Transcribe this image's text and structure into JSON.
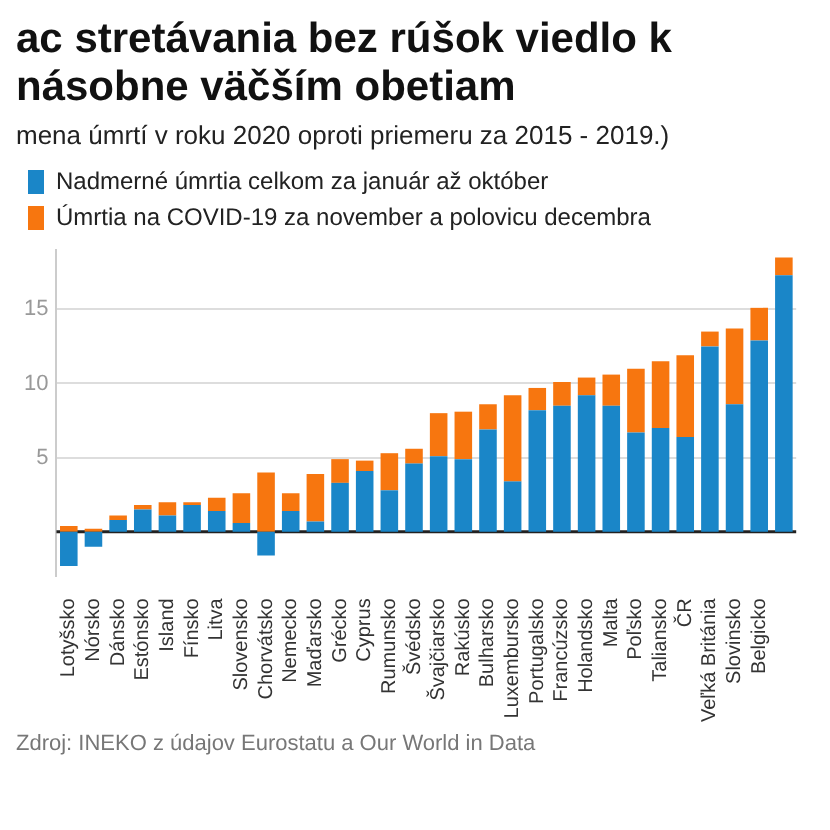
{
  "chart_data": {
    "type": "bar",
    "title": "ac stretávania bez rúšok viedlo k násobne väčším obetiam",
    "subtitle": "mena úmrtí v roku 2020 oproti priemeru za 2015 - 2019.)",
    "categories": [
      "Lotyšsko",
      "Nórsko",
      "Dánsko",
      "Estónsko",
      "Island",
      "Fínsko",
      "Litva",
      "Slovensko",
      "Chorvátsko",
      "Nemecko",
      "Maďarsko",
      "Grécko",
      "Cyprus",
      "Rumunsko",
      "Švédsko",
      "Švajčiarsko",
      "Rakúsko",
      "Bulharsko",
      "Luxembursko",
      "Portugalsko",
      "Francúzsko",
      "Holandsko",
      "Malta",
      "Poľsko",
      "Taliansko",
      "ČR",
      "Veľká Británia",
      "Slovinsko",
      "Belgicko",
      null
    ],
    "series": [
      {
        "name": "Nadmerné úmrtia celkom za január až október",
        "color": "#1a86c8",
        "values": [
          -2.3,
          -1.0,
          0.8,
          1.5,
          1.1,
          1.8,
          1.4,
          0.6,
          -1.6,
          1.4,
          0.7,
          3.3,
          4.1,
          2.8,
          4.6,
          5.1,
          4.9,
          6.9,
          3.4,
          8.2,
          8.5,
          9.2,
          8.5,
          6.7,
          7.0,
          6.4,
          12.5,
          8.6,
          12.9,
          17.3
        ]
      },
      {
        "name": "Úmrtia na COVID-19 za november a polovicu decembra",
        "color": "#f7760f",
        "values": [
          0.4,
          0.2,
          0.3,
          0.3,
          0.9,
          0.2,
          0.9,
          2.0,
          4.0,
          1.2,
          3.2,
          1.6,
          0.7,
          2.5,
          1.0,
          2.9,
          3.2,
          1.7,
          5.8,
          1.5,
          1.6,
          1.2,
          2.1,
          4.3,
          4.5,
          5.5,
          1.0,
          5.1,
          2.2,
          1.2
        ]
      }
    ],
    "stacked": true,
    "ylim": [
      -3,
      19
    ],
    "yticks": [
      5,
      10,
      15
    ],
    "grid": "y",
    "legend": "top left",
    "annotations": [
      "Zdroj: INEKO z údajov Eurostatu a Our World in Data"
    ]
  }
}
